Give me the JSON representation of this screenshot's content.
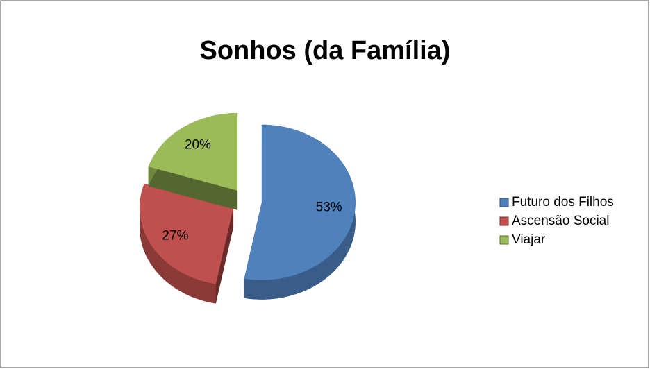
{
  "chart_data": {
    "type": "pie",
    "title": "Sonhos (da Família)",
    "categories": [
      "Futuro dos Filhos",
      "Ascensão Social",
      "Viajar"
    ],
    "values": [
      53,
      27,
      20
    ],
    "value_labels": [
      "53%",
      "27%",
      "20%"
    ],
    "colors": [
      "#4f81bd",
      "#c0504d",
      "#9bbb59"
    ],
    "legend": "right"
  }
}
